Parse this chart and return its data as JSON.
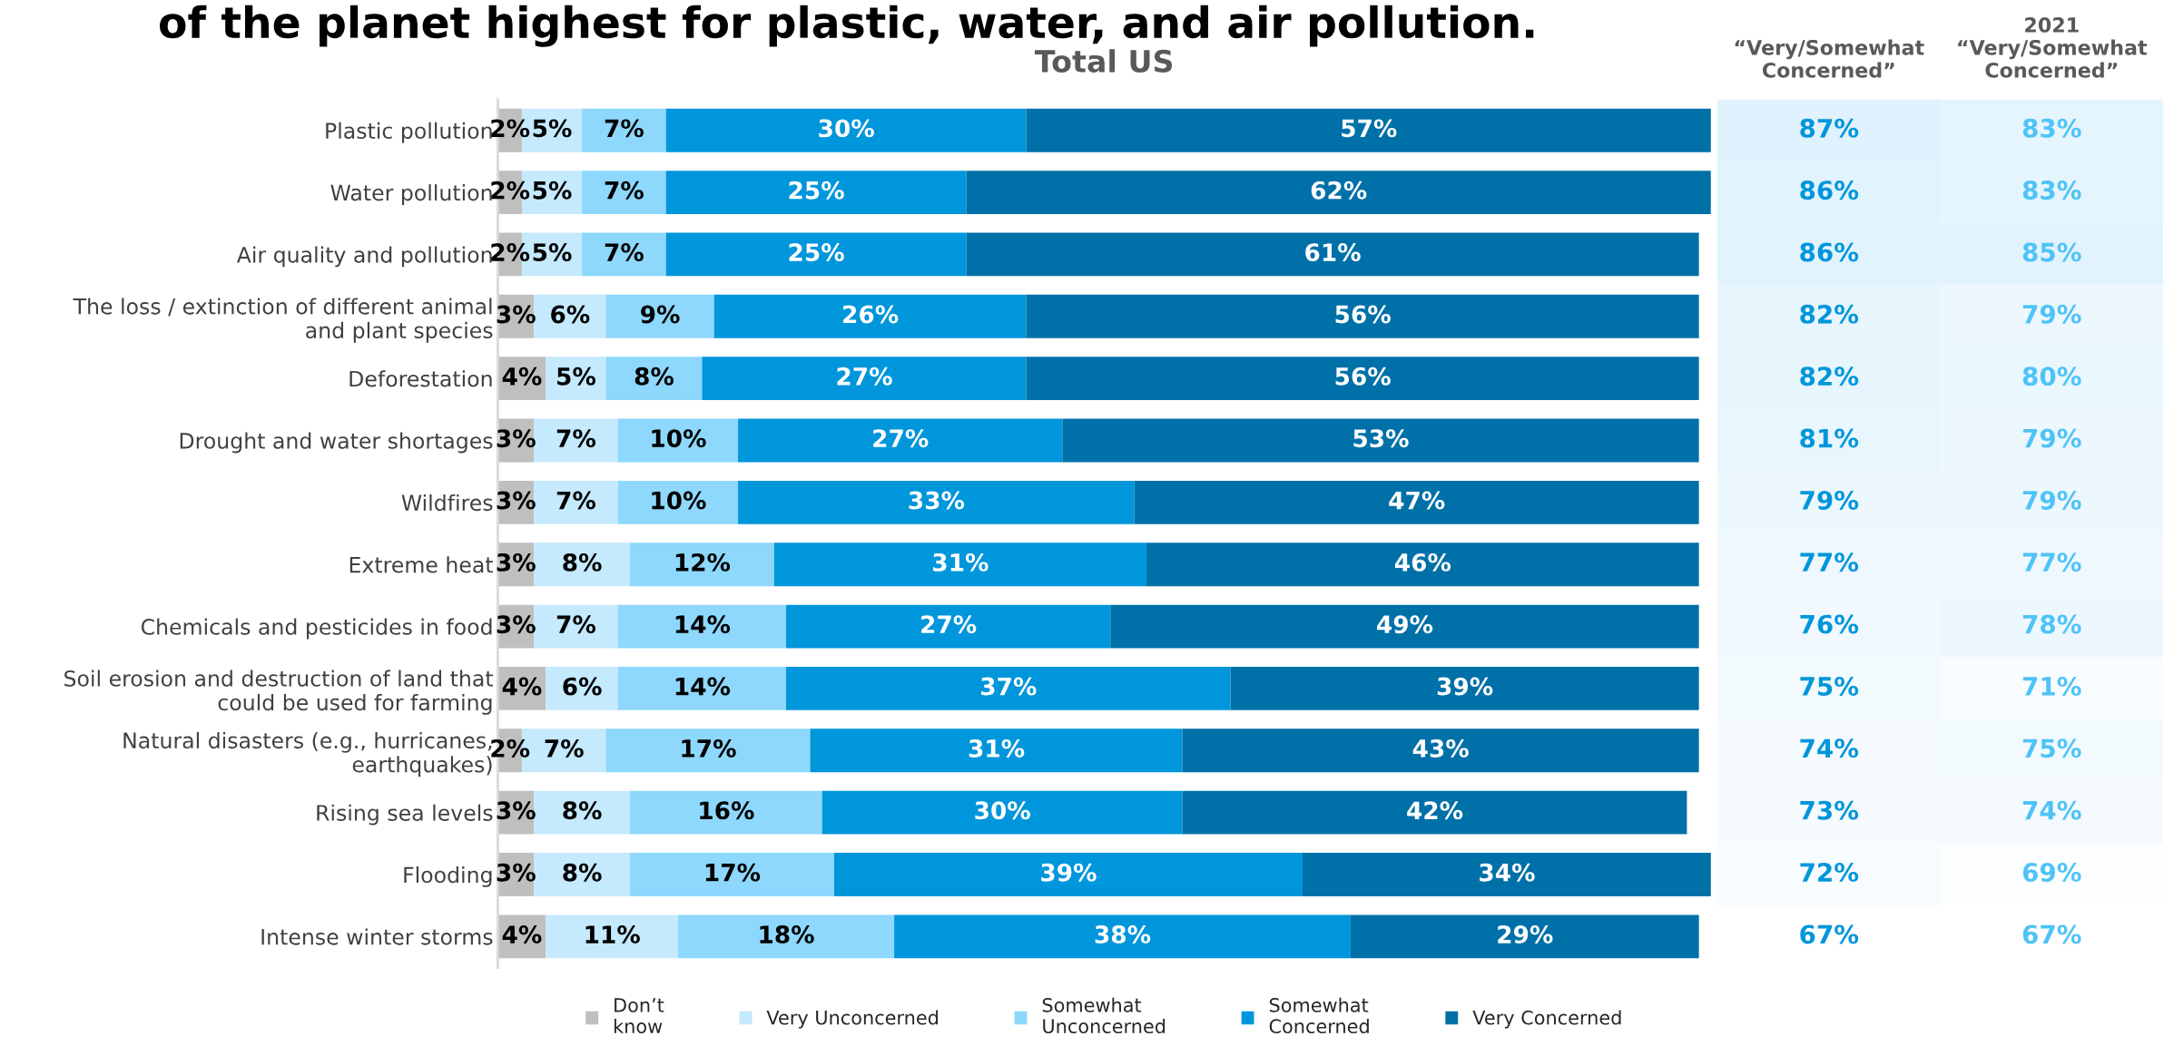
{
  "chart_data": [
    {
      "type": "bar",
      "orientation": "horizontal",
      "stacked": true,
      "title": "of the planet highest for plastic, water, and air pollution.",
      "subtitle": "Total US",
      "categories": [
        "Plastic pollution",
        "Water pollution",
        "Air quality and pollution",
        "The loss / extinction of different animal\nand plant species",
        "Deforestation",
        "Drought and water shortages",
        "Wildfires",
        "Extreme heat",
        "Chemicals and pesticides in food",
        "Soil erosion and destruction of land that\ncould be used for farming",
        "Natural disasters (e.g., hurricanes,\nearthquakes)",
        "Rising sea levels",
        "Flooding",
        "Intense winter storms"
      ],
      "series": [
        {
          "name": "Don’t\nknow",
          "color": "#bfbfbf",
          "values": [
            2,
            2,
            2,
            3,
            4,
            3,
            3,
            3,
            3,
            4,
            2,
            3,
            3,
            4
          ],
          "value_labels": [
            "2%",
            "2%",
            "2%",
            "3%",
            "4%",
            "3%",
            "3%",
            "3%",
            "3%",
            "4%",
            "2%",
            "3%",
            "3%",
            "4%"
          ]
        },
        {
          "name": "Very Unconcerned",
          "color": "#c5e9fd",
          "values": [
            5,
            5,
            5,
            6,
            5,
            7,
            7,
            8,
            7,
            6,
            7,
            8,
            8,
            11
          ],
          "value_labels": [
            "5%",
            "5%",
            "5%",
            "6%",
            "5%",
            "7%",
            "7%",
            "8%",
            "7%",
            "6%",
            "7%",
            "8%",
            "8%",
            "11%"
          ]
        },
        {
          "name": "Somewhat\nUnconcerned",
          "color": "#8dd8fc",
          "values": [
            7,
            7,
            7,
            9,
            8,
            10,
            10,
            12,
            14,
            14,
            17,
            16,
            17,
            18
          ],
          "value_labels": [
            "7%",
            "7%",
            "7%",
            "9%",
            "8%",
            "10%",
            "10%",
            "12%",
            "14%",
            "14%",
            "17%",
            "16%",
            "17%",
            "18%"
          ]
        },
        {
          "name": "Somewhat\nConcerned",
          "color": "#0096db",
          "values": [
            30,
            25,
            25,
            26,
            27,
            27,
            33,
            31,
            27,
            37,
            31,
            30,
            39,
            38
          ],
          "value_labels": [
            "30%",
            "25%",
            "25%",
            "26%",
            "27%",
            "27%",
            "33%",
            "31%",
            "27%",
            "37%",
            "31%",
            "30%",
            "39%",
            "38%"
          ]
        },
        {
          "name": "Very Concerned",
          "color": "#0070a8",
          "values": [
            57,
            62,
            61,
            56,
            56,
            53,
            47,
            46,
            49,
            39,
            43,
            42,
            34,
            29
          ],
          "value_labels": [
            "57%",
            "62%",
            "61%",
            "56%",
            "56%",
            "53%",
            "47%",
            "46%",
            "49%",
            "39%",
            "43%",
            "42%",
            "34%",
            "29%"
          ]
        }
      ],
      "legend": "bottom",
      "tick_labels": "y"
    },
    {
      "type": "heatmap",
      "categories": [
        "“Very/Somewhat\nConcerned”",
        "2021\n“Very/Somewhat\nConcerned”"
      ],
      "colors": [
        "#0096db",
        "#4fc3f7"
      ],
      "y_categories": [
        null,
        null,
        null,
        null,
        null,
        null,
        null,
        null,
        null,
        null,
        null,
        null,
        null,
        null
      ],
      "cells": [
        [
          87,
          83
        ],
        [
          86,
          83
        ],
        [
          86,
          85
        ],
        [
          82,
          79
        ],
        [
          82,
          80
        ],
        [
          81,
          79
        ],
        [
          79,
          79
        ],
        [
          77,
          77
        ],
        [
          76,
          78
        ],
        [
          75,
          71
        ],
        [
          74,
          75
        ],
        [
          73,
          74
        ],
        [
          72,
          69
        ],
        [
          67,
          67
        ]
      ],
      "cell_labels": [
        [
          "87%",
          "83%"
        ],
        [
          "86%",
          "83%"
        ],
        [
          "86%",
          "85%"
        ],
        [
          "82%",
          "79%"
        ],
        [
          "82%",
          "80%"
        ],
        [
          "81%",
          "79%"
        ],
        [
          "79%",
          "79%"
        ],
        [
          "77%",
          "77%"
        ],
        [
          "76%",
          "78%"
        ],
        [
          "75%",
          "71%"
        ],
        [
          "74%",
          "75%"
        ],
        [
          "73%",
          "74%"
        ],
        [
          "72%",
          "69%"
        ],
        [
          "67%",
          "67%"
        ]
      ]
    }
  ]
}
